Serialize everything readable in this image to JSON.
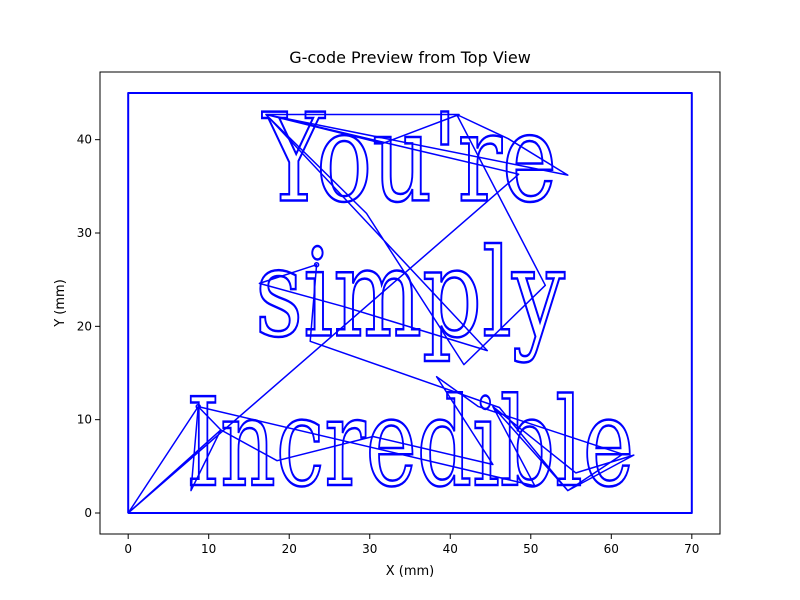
{
  "chart_data": {
    "type": "line",
    "title": "G-code Preview from Top View",
    "xlabel": "X (mm)",
    "ylabel": "Y (mm)",
    "xlim": [
      -3.5,
      73.5
    ],
    "ylim": [
      -2.25,
      47.25
    ],
    "xticks": [
      0,
      10,
      20,
      30,
      40,
      50,
      60,
      70
    ],
    "yticks": [
      0,
      10,
      20,
      30,
      40
    ],
    "grid": false,
    "legend": "none",
    "line_color": "#0000ff",
    "border_path": [
      [
        0,
        0
      ],
      [
        0,
        45
      ],
      [
        70,
        45
      ],
      [
        70,
        0
      ],
      [
        0,
        0
      ]
    ],
    "travel_path": [
      [
        0,
        0
      ],
      [
        8.7,
        11.4
      ],
      [
        7.8,
        2.4
      ],
      [
        11.5,
        8.9
      ],
      [
        0,
        0
      ],
      [
        48.5,
        36.3
      ],
      [
        17.1,
        42.7
      ],
      [
        41.1,
        42.7
      ],
      [
        31.6,
        39.6
      ],
      [
        17.1,
        42.7
      ],
      [
        54.6,
        36.2
      ],
      [
        47.2,
        40.1
      ],
      [
        40.8,
        42.7
      ],
      [
        51.8,
        24.4
      ],
      [
        41.7,
        15.9
      ],
      [
        29.6,
        32.1
      ],
      [
        17.1,
        42.7
      ],
      [
        44.6,
        17.4
      ],
      [
        26.8,
        22.1
      ],
      [
        16.3,
        24.6
      ],
      [
        23.4,
        26.6
      ],
      [
        22.6,
        18.4
      ],
      [
        46.1,
        11.3
      ],
      [
        54.6,
        2.4
      ],
      [
        61.4,
        6.3
      ],
      [
        43.5,
        11.4
      ],
      [
        38.3,
        14.6
      ],
      [
        45.3,
        5.2
      ],
      [
        30.4,
        8.2
      ],
      [
        18.5,
        5.6
      ],
      [
        11.5,
        8.9
      ],
      [
        8.7,
        11.4
      ],
      [
        50.5,
        2.9
      ],
      [
        45.3,
        11.4
      ],
      [
        54.6,
        2.4
      ],
      [
        62.8,
        6.2
      ],
      [
        55.6,
        4.3
      ],
      [
        45.3,
        11.4
      ]
    ],
    "text_lines": [
      {
        "text": "You're",
        "x": 35,
        "y": 33.5
      },
      {
        "text": "simply",
        "x": 35,
        "y": 19.0
      },
      {
        "text": "Incredible",
        "x": 35,
        "y": 3.0
      }
    ]
  }
}
